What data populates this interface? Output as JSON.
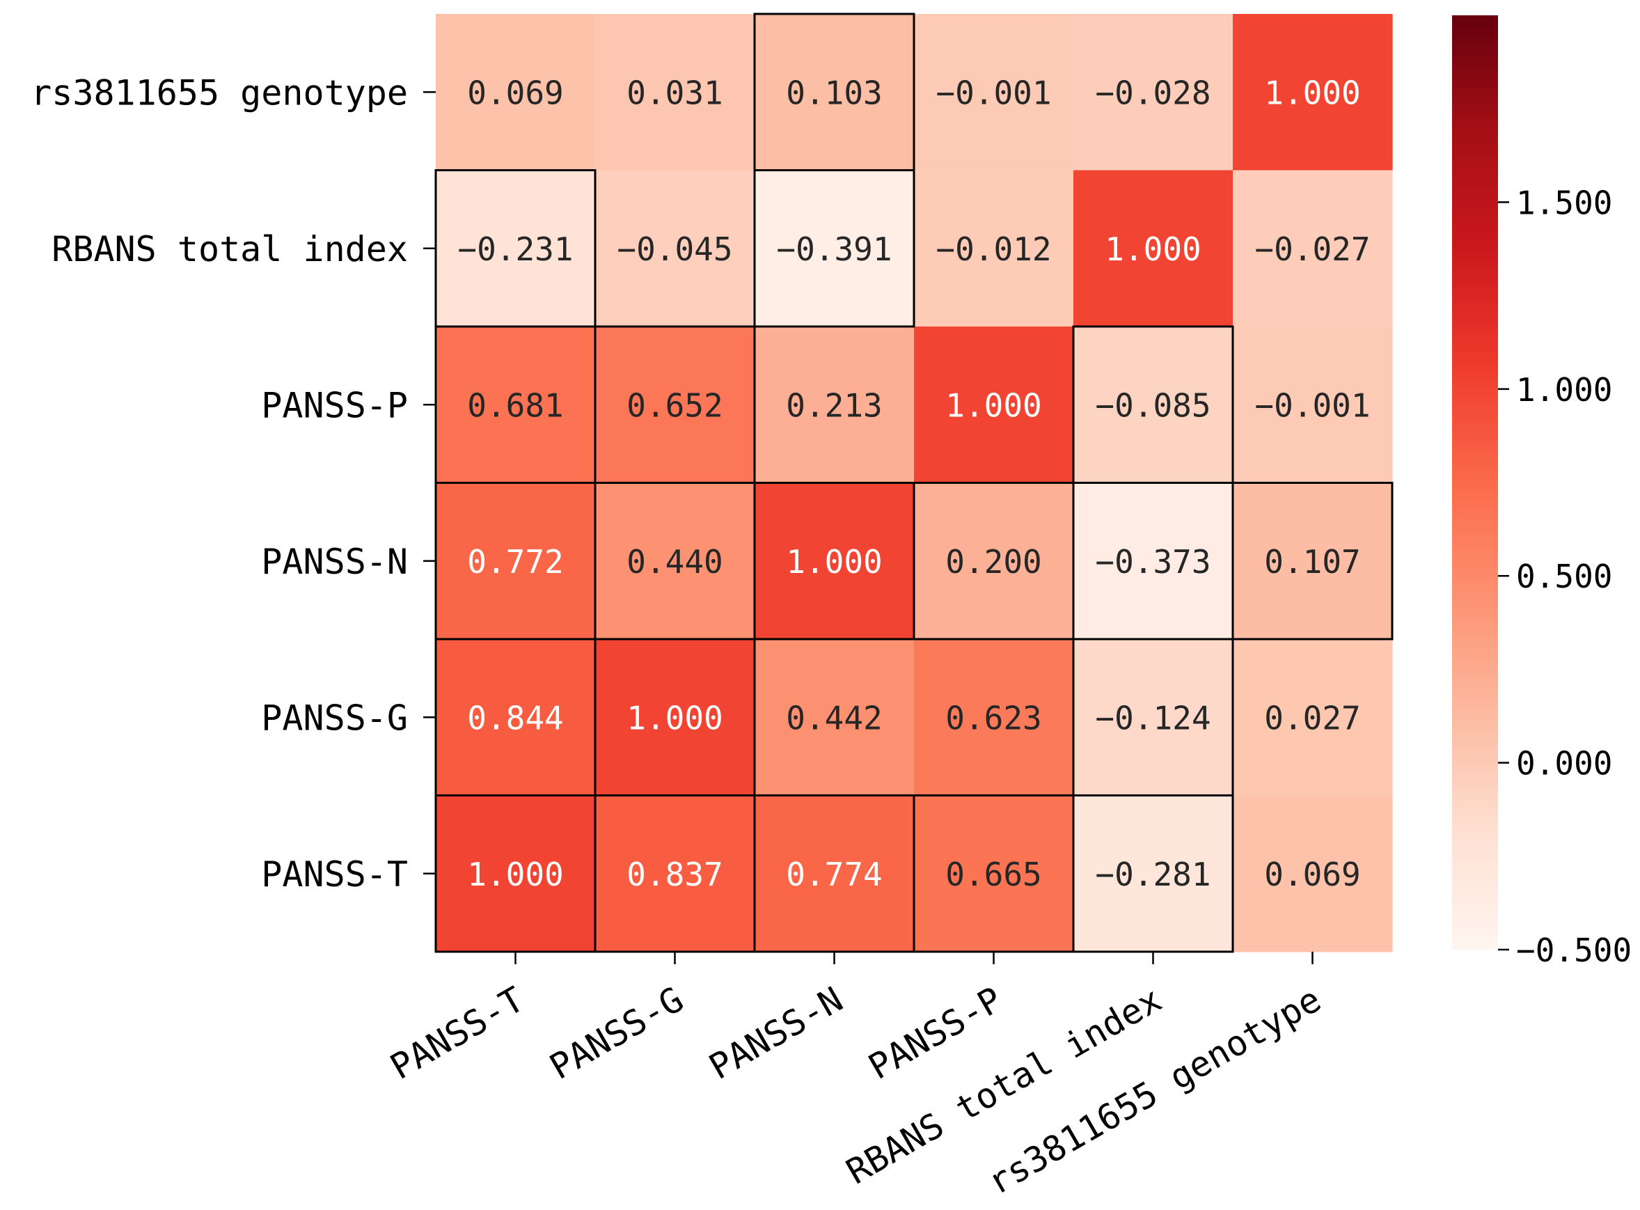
{
  "chart_data": {
    "type": "heatmap",
    "title": "",
    "xlabel": "",
    "ylabel": "",
    "x_categories": [
      "PANSS-T",
      "PANSS-G",
      "PANSS-N",
      "PANSS-P",
      "RBANS total index",
      "rs3811655 genotype"
    ],
    "y_categories": [
      "rs3811655 genotype",
      "RBANS total index",
      "PANSS-P",
      "PANSS-N",
      "PANSS-G",
      "PANSS-T"
    ],
    "values": [
      [
        0.069,
        0.031,
        0.103,
        -0.001,
        -0.028,
        1.0
      ],
      [
        -0.231,
        -0.045,
        -0.391,
        -0.012,
        1.0,
        -0.027
      ],
      [
        0.681,
        0.652,
        0.213,
        1.0,
        -0.085,
        -0.001
      ],
      [
        0.772,
        0.44,
        1.0,
        0.2,
        -0.373,
        0.107
      ],
      [
        0.844,
        1.0,
        0.442,
        0.623,
        -0.124,
        0.027
      ],
      [
        1.0,
        0.837,
        0.774,
        0.665,
        -0.281,
        0.069
      ]
    ],
    "value_labels": [
      [
        "0.069",
        "0.031",
        "0.103",
        "-0.001",
        "-0.028",
        "1.000"
      ],
      [
        "-0.231",
        "-0.045",
        "-0.391",
        "-0.012",
        "1.000",
        "-0.027"
      ],
      [
        "0.681",
        "0.652",
        "0.213",
        "1.000",
        "-0.085",
        "-0.001"
      ],
      [
        "0.772",
        "0.440",
        "1.000",
        "0.200",
        "-0.373",
        "0.107"
      ],
      [
        "0.844",
        "1.000",
        "0.442",
        "0.623",
        "-0.124",
        "0.027"
      ],
      [
        "1.000",
        "0.837",
        "0.774",
        "0.665",
        "-0.281",
        "0.069"
      ]
    ],
    "highlighted_cells": [
      [
        0,
        2
      ],
      [
        1,
        0
      ],
      [
        1,
        2
      ],
      [
        2,
        0
      ],
      [
        2,
        1
      ],
      [
        2,
        4
      ],
      [
        3,
        0
      ],
      [
        3,
        1
      ],
      [
        3,
        2
      ],
      [
        3,
        3
      ],
      [
        3,
        4
      ],
      [
        3,
        5
      ],
      [
        4,
        0
      ],
      [
        4,
        1
      ],
      [
        4,
        4
      ],
      [
        5,
        0
      ],
      [
        5,
        1
      ],
      [
        5,
        2
      ],
      [
        5,
        3
      ],
      [
        5,
        4
      ]
    ],
    "colorbar": {
      "vmin": -0.5,
      "vmax": 2.0,
      "ticks": [
        -0.5,
        0.0,
        0.5,
        1.0,
        1.5
      ],
      "tick_labels": [
        "-0.500",
        "0.000",
        "0.500",
        "1.000",
        "1.500"
      ],
      "colors": [
        "#fff5f0",
        "#fee0d2",
        "#fcbba1",
        "#fc9272",
        "#fb6a4a",
        "#ef3b2c",
        "#cb181d",
        "#a50f15",
        "#67000d"
      ]
    },
    "text_colors": {
      "light_cell": "#262626",
      "dark_cell": "#ffffff"
    },
    "legend": "colorbar-right",
    "grid": false
  }
}
